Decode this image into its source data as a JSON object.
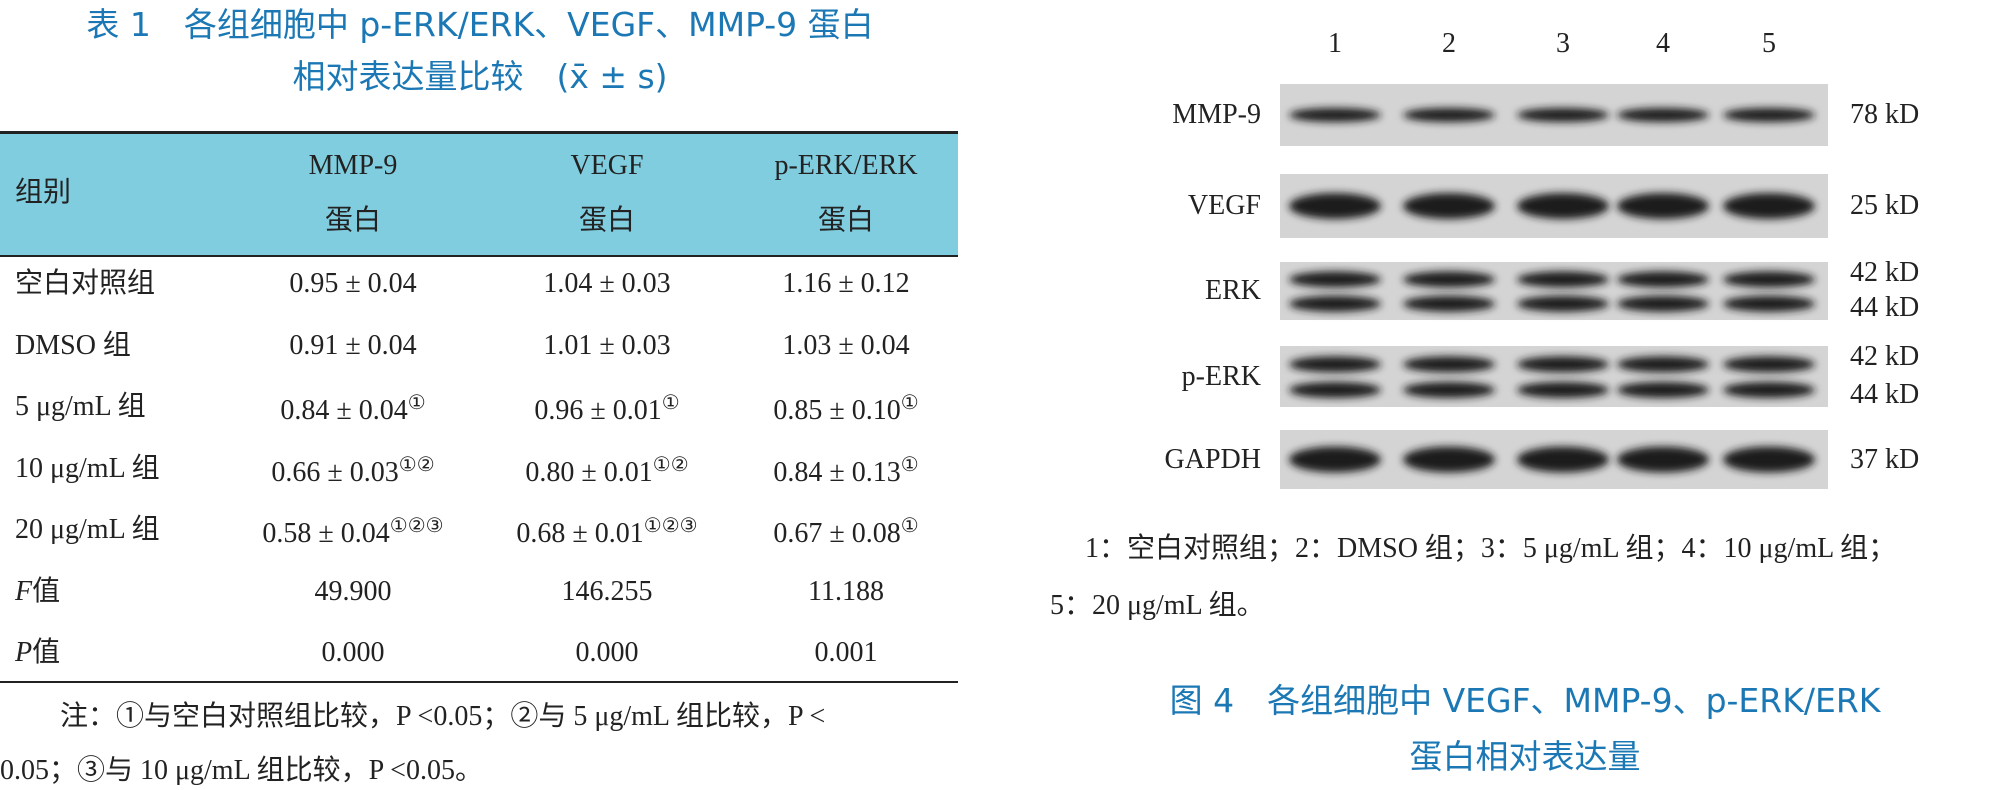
{
  "table": {
    "title": [
      "表 1　各组细胞中 p-ERK/ERK、VEGF、MMP-9 蛋白",
      "相对表达量比较　(x̄ ± s)"
    ],
    "header": [
      [
        "组别"
      ],
      [
        "MMP-9",
        "蛋白"
      ],
      [
        "VEGF",
        "蛋白"
      ],
      [
        "p-ERK/ERK",
        "蛋白"
      ]
    ],
    "rows": [
      [
        "空白对照组",
        "0.95 ± 0.04",
        "1.04 ± 0.03",
        "1.16 ± 0.12"
      ],
      [
        "DMSO 组",
        "0.91 ± 0.04",
        "1.01 ± 0.03",
        "1.03 ± 0.04"
      ],
      [
        "5 μg/mL 组",
        {
          "text": "0.84 ± 0.04",
          "sup": "①"
        },
        {
          "text": "0.96 ± 0.01",
          "sup": "①"
        },
        {
          "text": "0.85 ± 0.10",
          "sup": "①"
        }
      ],
      [
        "10 μg/mL 组",
        {
          "text": "0.66 ± 0.03",
          "sup": "①②"
        },
        {
          "text": "0.80 ± 0.01",
          "sup": "①②"
        },
        {
          "text": "0.84 ± 0.13",
          "sup": "①"
        }
      ],
      [
        "20 μg/mL 组",
        {
          "text": "0.58 ± 0.04",
          "sup": "①②③"
        },
        {
          "text": "0.68 ± 0.01",
          "sup": "①②③"
        },
        {
          "text": "0.67 ± 0.08",
          "sup": "①"
        }
      ],
      [
        {
          "italic": "F",
          "text": "值"
        },
        "49.900",
        "146.255",
        "11.188"
      ],
      [
        {
          "italic": "P",
          "text": "值"
        },
        "0.000",
        "0.000",
        "0.001"
      ]
    ],
    "note": [
      "注：①与空白对照组比较，P <0.05；②与 5 μg/mL 组比较，P <",
      "0.05；③与 10 μg/mL 组比较，P <0.05。"
    ]
  },
  "figure": {
    "lanes": [
      "1",
      "2",
      "3",
      "4",
      "5"
    ],
    "blots": [
      {
        "label": "MMP-9",
        "kd": [
          "78 kD"
        ]
      },
      {
        "label": "VEGF",
        "kd": [
          "25 kD"
        ]
      },
      {
        "label": "ERK",
        "kd": [
          "42 kD",
          "44 kD"
        ]
      },
      {
        "label": "p-ERK",
        "kd": [
          "42 kD",
          "44 kD"
        ]
      },
      {
        "label": "GAPDH",
        "kd": [
          "37 kD"
        ]
      }
    ],
    "caption": [
      "1：空白对照组；2：DMSO 组；3：5 μg/mL 组；4：10 μg/mL 组；",
      "5：20 μg/mL 组。"
    ],
    "title": [
      "图 4　各组细胞中 VEGF、MMP-9、p-ERK/ERK",
      "蛋白相对表达量"
    ]
  }
}
